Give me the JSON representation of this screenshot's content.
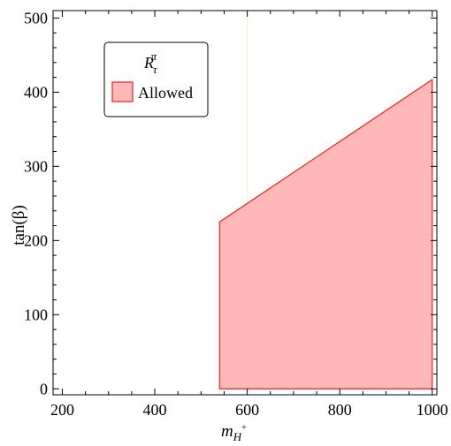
{
  "chart_data": {
    "type": "area",
    "xlabel": "m",
    "xlabel_sub": "H",
    "xlabel_sup": "+",
    "ylabel": "tan(β)",
    "xlim": [
      180,
      1010
    ],
    "ylim": [
      -8,
      510
    ],
    "xticks": [
      200,
      400,
      600,
      800,
      1000
    ],
    "yticks": [
      0,
      100,
      200,
      300,
      400,
      500
    ],
    "grid": false,
    "legend": {
      "placement": "top-left",
      "title": "R",
      "title_sub": "τ",
      "title_sup": "π",
      "entries": [
        "Allowed"
      ]
    },
    "series": [
      {
        "name": "Allowed",
        "fill_color": "#ffb8b8",
        "edge_color": "#e8202a",
        "polygon": [
          {
            "x": 540,
            "y": 0
          },
          {
            "x": 540,
            "y": 225
          },
          {
            "x": 1000,
            "y": 417
          },
          {
            "x": 1000,
            "y": 0
          }
        ]
      }
    ],
    "reference_line": {
      "x": 600,
      "color": "#eef3c8"
    }
  }
}
